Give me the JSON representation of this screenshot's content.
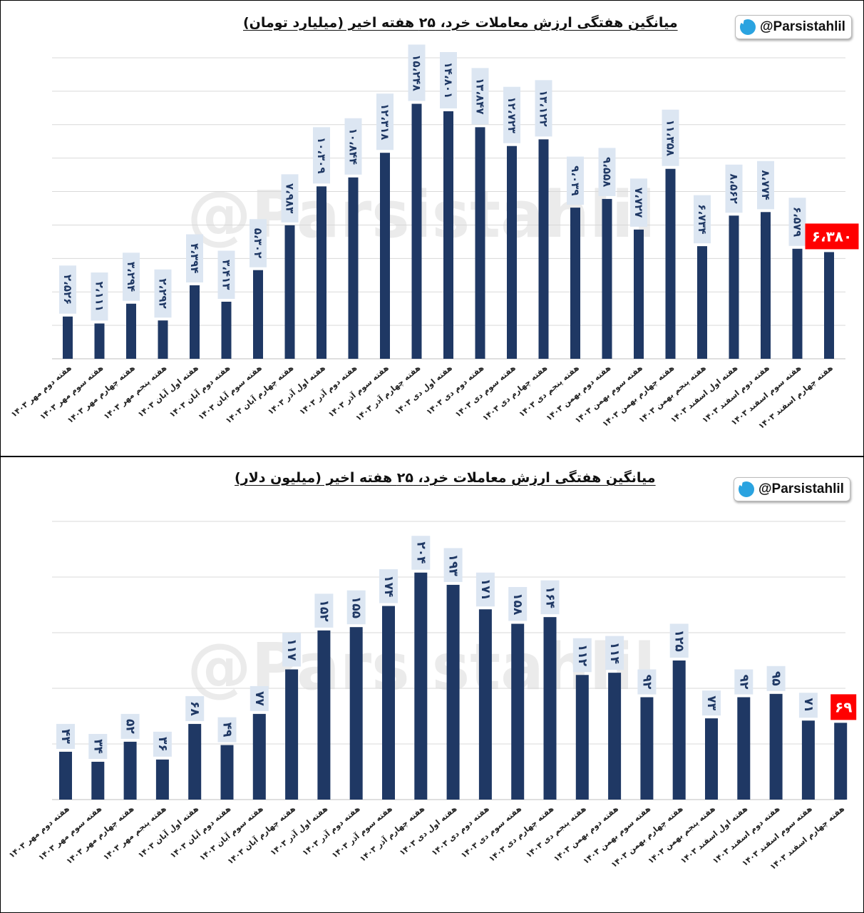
{
  "branding": {
    "handle": "@Parsistahlil",
    "icon": "telegram-icon",
    "watermark": "@Parsistahlil"
  },
  "colors": {
    "bar": "#1f3864",
    "highlight": "#ff0000",
    "label_bg": "#dce6f2",
    "grid": "#d9d9d9"
  },
  "chart_data": [
    {
      "type": "bar",
      "title": "میانگین هفتگی ارزش معاملات خرد، ۲۵ هفته اخیر (میلیارد تومان)",
      "categories": [
        "هفته دوم مهر ۱۴۰۳",
        "هفته سوم مهر ۱۴۰۳",
        "هفته چهارم مهر ۱۴۰۳",
        "هفته پنجم مهر ۱۴۰۳",
        "هفته اول آبان ۱۴۰۳",
        "هفته دوم آبان ۱۴۰۳",
        "هفته سوم آبان ۱۴۰۳",
        "هفته چهارم آبان ۱۴۰۳",
        "هفته اول آذر ۱۴۰۳",
        "هفته دوم آذر ۱۴۰۳",
        "هفته سوم آذر ۱۴۰۳",
        "هفته چهارم آذر ۱۴۰۳",
        "هفته اول دی ۱۴۰۳",
        "هفته دوم دی ۱۴۰۳",
        "هفته سوم دی ۱۴۰۳",
        "هفته چهارم دی ۱۴۰۳",
        "هفته پنجم دی ۱۴۰۳",
        "هفته دوم بهمن ۱۴۰۳",
        "هفته سوم بهمن ۱۴۰۳",
        "هفته چهارم بهمن ۱۴۰۳",
        "هفته پنجم بهمن ۱۴۰۳",
        "هفته اول اسفند ۱۴۰۳",
        "هفته دوم اسفند ۱۴۰۳",
        "هفته سوم اسفند ۱۴۰۳",
        "هفته چهارم اسفند ۱۴۰۳"
      ],
      "values": [
        2526,
        2111,
        3294,
        2292,
        4394,
        3413,
        5302,
        7983,
        10309,
        10844,
        12318,
        15248,
        14801,
        13847,
        12723,
        13122,
        9039,
        9558,
        7727,
        11358,
        6734,
        8562,
        8774,
        6579,
        6380
      ],
      "labels": [
        "۲،۵۲۶",
        "۲،۱۱۱",
        "۳،۲۹۴",
        "۲،۲۹۲",
        "۴،۳۹۴",
        "۳،۴۱۳",
        "۵،۳۰۲",
        "۷،۹۸۳",
        "۱۰،۳۰۹",
        "۱۰،۸۴۴",
        "۱۲،۳۱۸",
        "۱۵،۲۴۸",
        "۱۴،۸۰۱",
        "۱۳،۸۴۷",
        "۱۲،۷۲۳",
        "۱۳،۱۲۲",
        "۹،۰۳۹",
        "۹،۵۵۸",
        "۷،۷۲۷",
        "۱۱،۳۵۸",
        "۶،۷۳۴",
        "۸،۵۶۲",
        "۸،۷۷۴",
        "۶،۵۷۹",
        "۶،۳۸۰"
      ],
      "highlight_index": 24,
      "ylim": [
        0,
        18000
      ],
      "grid_step": 2000,
      "grid": true
    },
    {
      "type": "bar",
      "title": "میانگین هفتگی ارزش معاملات خرد، ۲۵ هفته اخیر (میلیون دلار)",
      "categories": [
        "هفته دوم مهر ۱۴۰۳",
        "هفته سوم مهر ۱۴۰۳",
        "هفته چهارم مهر ۱۴۰۳",
        "هفته پنجم مهر ۱۴۰۳",
        "هفته اول آبان ۱۴۰۳",
        "هفته دوم آبان ۱۴۰۳",
        "هفته سوم آبان ۱۴۰۳",
        "هفته چهارم آبان ۱۴۰۳",
        "هفته اول آذر ۱۴۰۳",
        "هفته دوم آذر ۱۴۰۳",
        "هفته سوم آذر ۱۴۰۳",
        "هفته چهارم آذر ۱۴۰۳",
        "هفته اول دی ۱۴۰۳",
        "هفته دوم دی ۱۴۰۳",
        "هفته سوم دی ۱۴۰۳",
        "هفته چهارم دی ۱۴۰۳",
        "هفته پنجم دی ۱۴۰۳",
        "هفته دوم بهمن ۱۴۰۳",
        "هفته سوم بهمن ۱۴۰۳",
        "هفته چهارم بهمن ۱۴۰۳",
        "هفته پنجم بهمن ۱۴۰۳",
        "هفته اول اسفند ۱۴۰۳",
        "هفته دوم اسفند ۱۴۰۳",
        "هفته سوم اسفند ۱۴۰۳",
        "هفته چهارم اسفند ۱۴۰۳"
      ],
      "values": [
        43,
        34,
        52,
        36,
        68,
        49,
        77,
        117,
        152,
        155,
        174,
        204,
        193,
        171,
        158,
        164,
        112,
        114,
        92,
        125,
        73,
        92,
        95,
        71,
        69
      ],
      "labels": [
        "۴۳",
        "۳۴",
        "۵۲",
        "۳۶",
        "۶۸",
        "۴۹",
        "۷۷",
        "۱۱۷",
        "۱۵۲",
        "۱۵۵",
        "۱۷۴",
        "۲۰۴",
        "۱۹۳",
        "۱۷۱",
        "۱۵۸",
        "۱۶۴",
        "۱۱۲",
        "۱۱۴",
        "۹۲",
        "۱۲۵",
        "۷۳",
        "۹۲",
        "۹۵",
        "۷۱",
        "۶۹"
      ],
      "highlight_index": 24,
      "ylim": [
        0,
        250
      ],
      "grid_step": 50,
      "grid": true
    }
  ]
}
